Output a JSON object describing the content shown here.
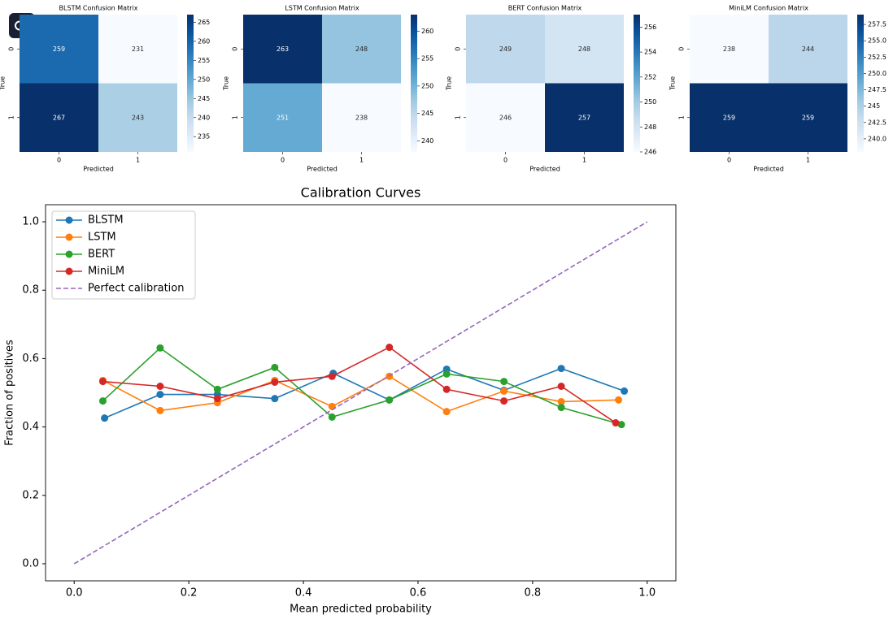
{
  "chart_data": [
    {
      "type": "heatmap",
      "title": "BLSTM Confusion Matrix",
      "xlabel": "Predicted",
      "ylabel": "True",
      "x": [
        "0",
        "1"
      ],
      "y": [
        "0",
        "1"
      ],
      "values": [
        [
          259,
          231
        ],
        [
          267,
          243
        ]
      ],
      "clim": [
        231,
        267
      ],
      "cticks": [
        235,
        240,
        245,
        250,
        255,
        260,
        265
      ],
      "colormap": "Blues"
    },
    {
      "type": "heatmap",
      "title": "LSTM Confusion Matrix",
      "xlabel": "Predicted",
      "ylabel": "True",
      "x": [
        "0",
        "1"
      ],
      "y": [
        "0",
        "1"
      ],
      "values": [
        [
          263,
          248
        ],
        [
          251,
          238
        ]
      ],
      "clim": [
        238,
        263
      ],
      "cticks": [
        240,
        245,
        250,
        255,
        260
      ],
      "colormap": "Blues"
    },
    {
      "type": "heatmap",
      "title": "BERT Confusion Matrix",
      "xlabel": "Predicted",
      "ylabel": "True",
      "x": [
        "0",
        "1"
      ],
      "y": [
        "0",
        "1"
      ],
      "values": [
        [
          249,
          248
        ],
        [
          246,
          257
        ]
      ],
      "clim": [
        246,
        257
      ],
      "cticks": [
        246,
        248,
        250,
        252,
        254,
        256
      ],
      "colormap": "Blues"
    },
    {
      "type": "heatmap",
      "title": "MiniLM Confusion Matrix",
      "xlabel": "Predicted",
      "ylabel": "True",
      "x": [
        "0",
        "1"
      ],
      "y": [
        "0",
        "1"
      ],
      "values": [
        [
          238,
          244
        ],
        [
          259,
          259
        ]
      ],
      "clim": [
        238,
        259
      ],
      "cticks": [
        {
          "value": 240,
          "label": "240.0"
        },
        242.5,
        245,
        {
          "value": 247.5,
          "label": "247.5"
        },
        {
          "value": 250,
          "label": "250.0"
        },
        252.5,
        {
          "value": 255,
          "label": "255.0"
        },
        257.5
      ],
      "colormap": "Blues"
    },
    {
      "type": "line",
      "title": "Calibration Curves",
      "xlabel": "Mean predicted probability",
      "ylabel": "Fraction of positives",
      "xlim": [
        -0.05,
        1.05
      ],
      "ylim": [
        -0.05,
        1.05
      ],
      "xticks": [
        {
          "value": 0,
          "label": "0.0"
        },
        0.2,
        0.4,
        0.6,
        0.8,
        {
          "value": 1,
          "label": "1.0"
        }
      ],
      "yticks": [
        {
          "value": 0,
          "label": "0.0"
        },
        0.2,
        0.4,
        0.6,
        0.8,
        {
          "value": 1,
          "label": "1.0"
        }
      ],
      "legend": "upper left",
      "series": [
        {
          "name": "BLSTM",
          "color": "#1f77b4",
          "linestyle": "solid",
          "marker": true,
          "x": [
            0.053,
            0.15,
            0.25,
            0.35,
            0.452,
            0.55,
            0.65,
            0.75,
            0.85,
            0.96
          ],
          "values": [
            0.426,
            0.495,
            0.495,
            0.483,
            0.557,
            0.479,
            0.569,
            0.507,
            0.571,
            0.505
          ]
        },
        {
          "name": "LSTM",
          "color": "#ff7f0e",
          "linestyle": "solid",
          "marker": true,
          "x": [
            0.05,
            0.15,
            0.25,
            0.35,
            0.45,
            0.55,
            0.65,
            0.75,
            0.85,
            0.95
          ],
          "values": [
            0.536,
            0.448,
            0.471,
            0.536,
            0.46,
            0.548,
            0.445,
            0.505,
            0.474,
            0.479
          ]
        },
        {
          "name": "BERT",
          "color": "#2ca02c",
          "linestyle": "solid",
          "marker": true,
          "x": [
            0.05,
            0.15,
            0.25,
            0.35,
            0.45,
            0.55,
            0.65,
            0.75,
            0.85,
            0.955
          ],
          "values": [
            0.476,
            0.631,
            0.51,
            0.574,
            0.429,
            0.479,
            0.555,
            0.533,
            0.457,
            0.407
          ]
        },
        {
          "name": "MiniLM",
          "color": "#d62728",
          "linestyle": "solid",
          "marker": true,
          "x": [
            0.05,
            0.15,
            0.25,
            0.35,
            0.45,
            0.55,
            0.65,
            0.75,
            0.85,
            0.945
          ],
          "values": [
            0.533,
            0.519,
            0.483,
            0.531,
            0.548,
            0.633,
            0.51,
            0.476,
            0.519,
            0.412
          ]
        },
        {
          "name": "Perfect calibration",
          "color": "#9467bd",
          "linestyle": "dashed",
          "marker": false,
          "x": [
            0,
            1
          ],
          "values": [
            0,
            1
          ]
        }
      ]
    }
  ]
}
